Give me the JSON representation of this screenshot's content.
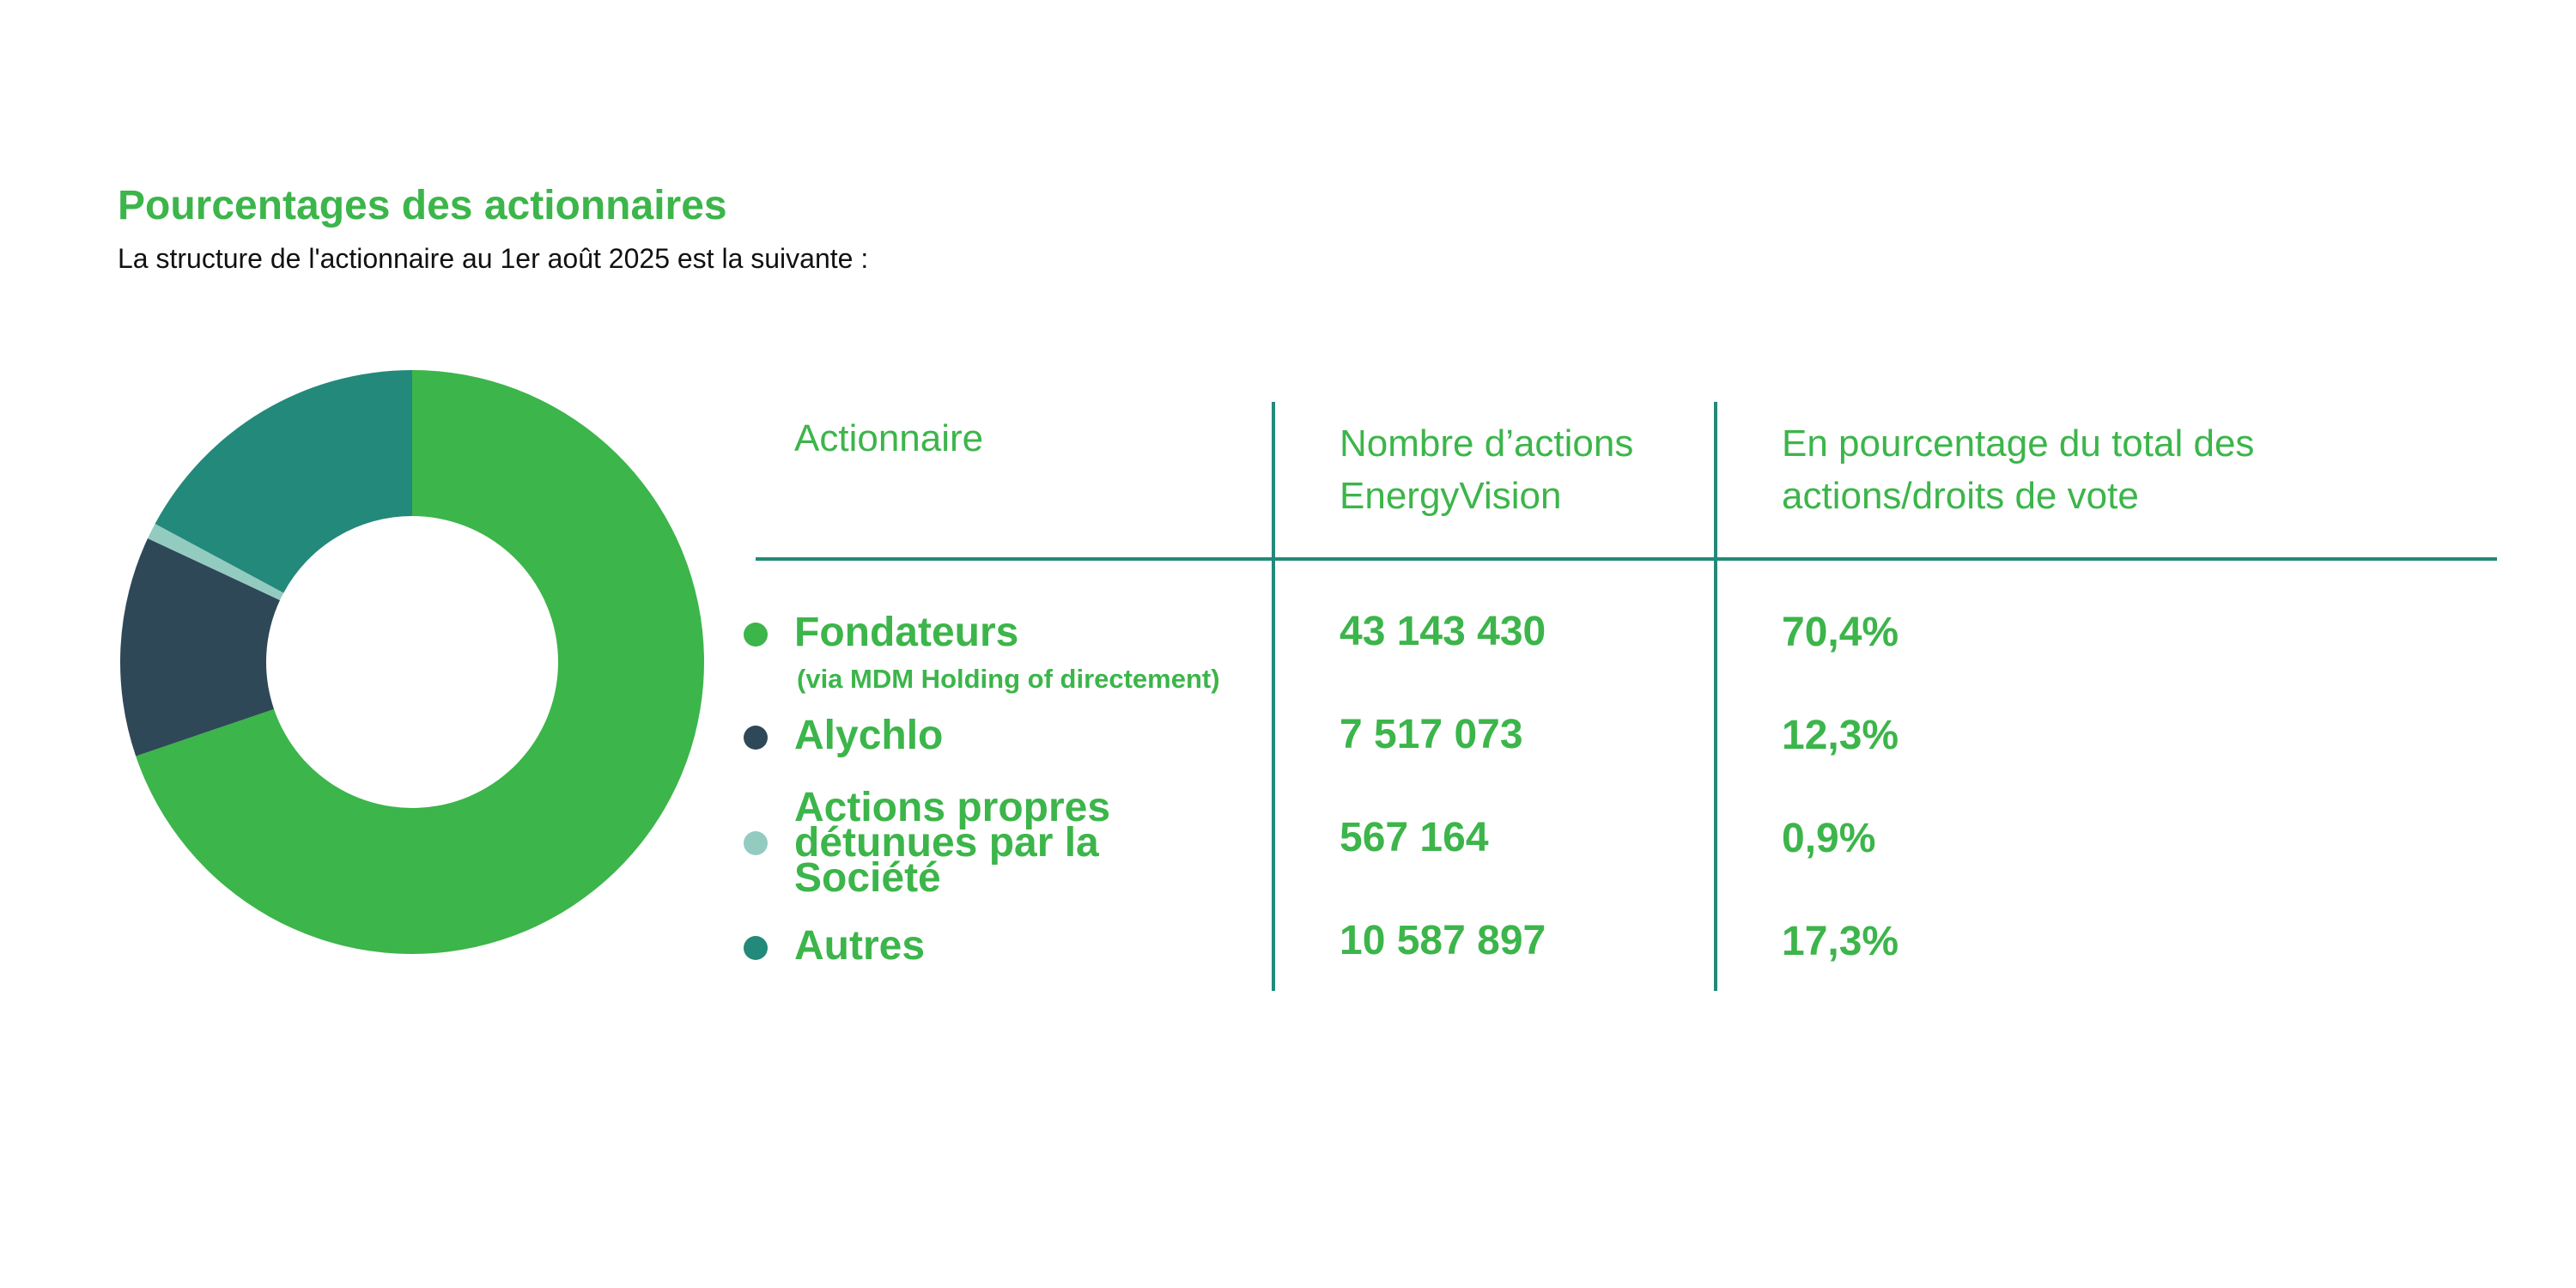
{
  "title": "Pourcentages des actionnaires",
  "subtitle": "La structure de l'actionnaire au 1er août 2025 est la suivante :",
  "table": {
    "headers": {
      "holder": "Actionnaire",
      "shares_line1": "Nombre d’actions",
      "shares_line2": "EnergyVision",
      "pct_line1": "En pourcentage du total des",
      "pct_line2": "actions/droits de vote"
    },
    "rows": [
      {
        "name_lines": [
          "Fondateurs"
        ],
        "note": "(via MDM Holding of directement)",
        "shares": "43 143 430",
        "percent": "70,4%",
        "color": "#3cb54a"
      },
      {
        "name_lines": [
          "Alychlo"
        ],
        "shares": "7 517 073",
        "percent": "12,3%",
        "color": "#2f4858"
      },
      {
        "name_lines": [
          "Actions propres",
          "détunues par la",
          "Société"
        ],
        "shares": "567 164",
        "percent": "0,9%",
        "color": "#93cbc1"
      },
      {
        "name_lines": [
          "Autres"
        ],
        "shares": "10 587 897",
        "percent": "17,3%",
        "color": "#23897a"
      }
    ]
  },
  "chart_data": {
    "type": "pie",
    "subtype": "donut",
    "categories": [
      "Fondateurs",
      "Alychlo",
      "Actions propres détunues par la Société",
      "Autres"
    ],
    "values": [
      70.4,
      12.3,
      0.9,
      17.3
    ],
    "unit": "%",
    "colors": [
      "#3cb54a",
      "#2f4858",
      "#93cbc1",
      "#23897a"
    ],
    "start": "top",
    "direction": "clockwise"
  }
}
